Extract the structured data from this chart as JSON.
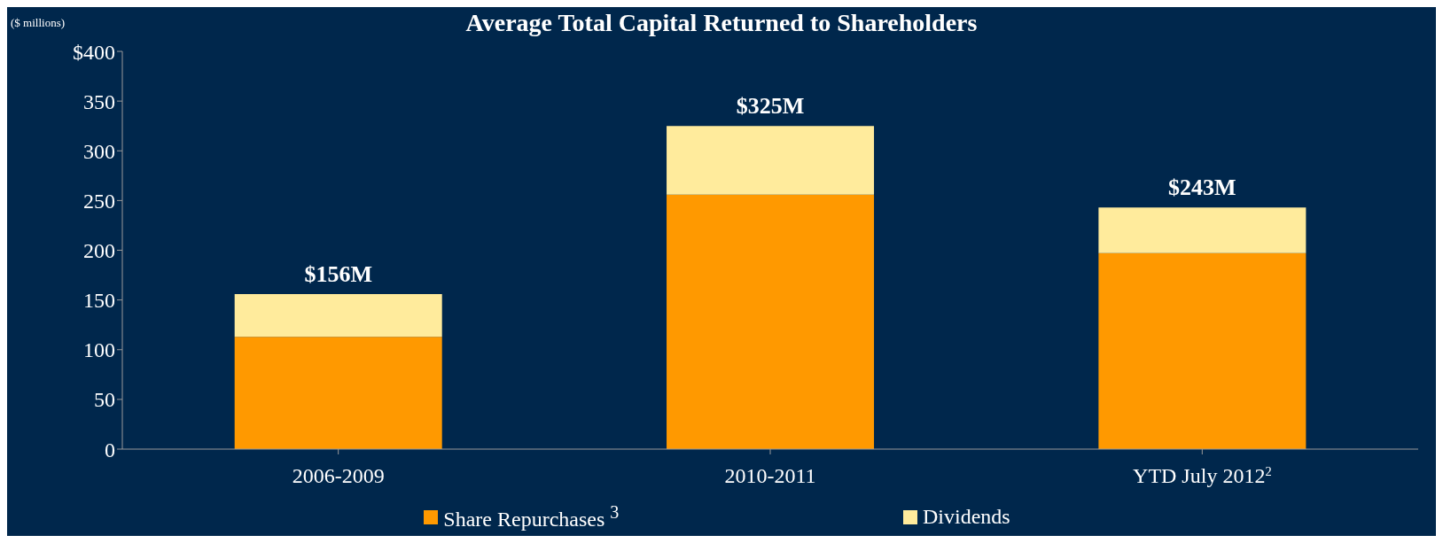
{
  "chart_data": {
    "type": "bar",
    "title": "Average Total Capital Returned to Shareholders",
    "ylabel": "($ millions)",
    "categories": [
      "2006-2009",
      "2010-2011",
      "YTD July 2012$^{2}$"
    ],
    "series": [
      {
        "name": "Share Repurchases $^{3}$",
        "color": "#ff9900",
        "values": [
          113,
          256,
          197
        ]
      },
      {
        "name": "Dividends",
        "color": "#ffeb9c",
        "values": [
          43,
          69,
          46
        ]
      }
    ],
    "stacked": true,
    "totals": [
      "$156M",
      "$325M",
      "$243M"
    ],
    "ylim": [
      0,
      400
    ],
    "yticks": [
      {
        "value": 0,
        "label": "0"
      },
      {
        "value": 50,
        "label": "50"
      },
      {
        "value": 100,
        "label": "100"
      },
      {
        "value": 150,
        "label": "150"
      },
      {
        "value": 200,
        "label": "200"
      },
      {
        "value": 250,
        "label": "250"
      },
      {
        "value": 300,
        "label": "300"
      },
      {
        "value": 350,
        "label": "350"
      },
      {
        "value": 400,
        "label": "$400"
      }
    ],
    "grid": false,
    "legend": "bottom"
  }
}
